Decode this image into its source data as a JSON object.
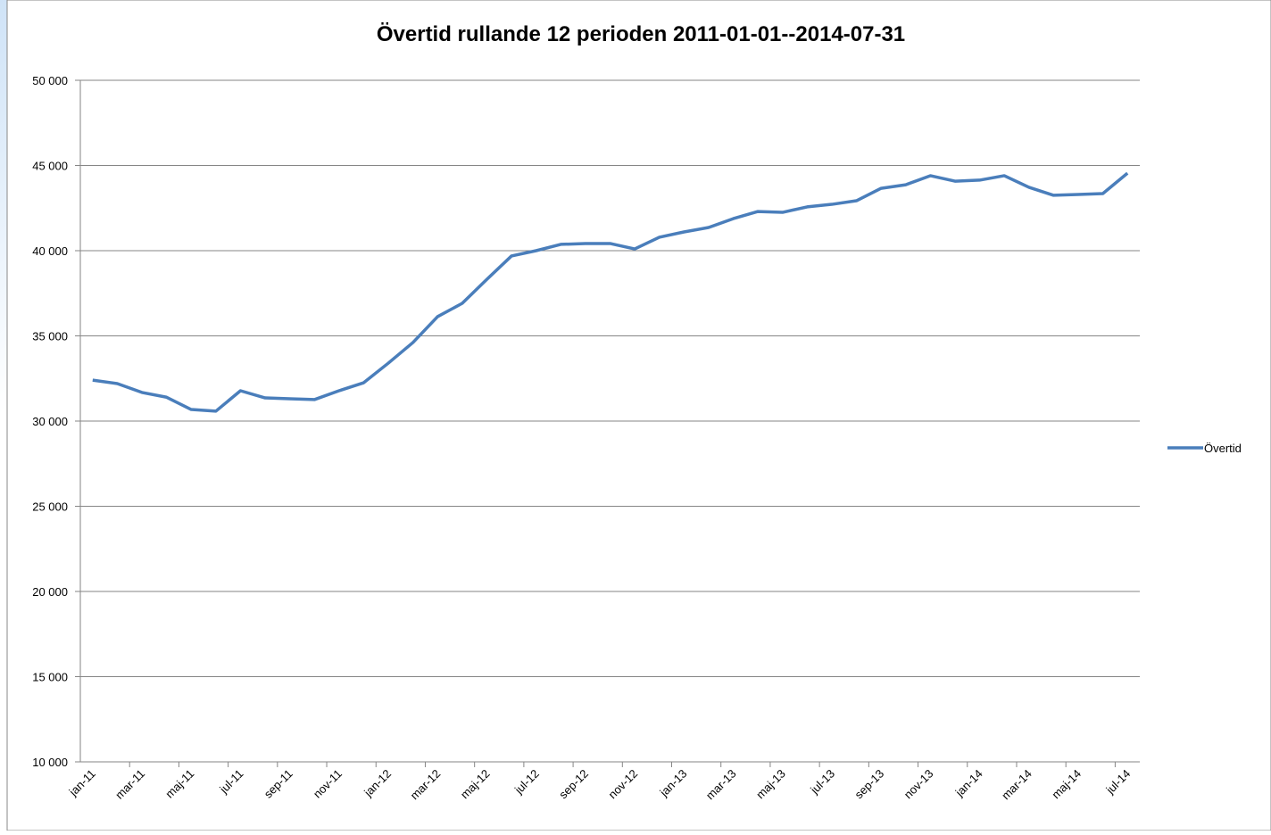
{
  "chart_data": {
    "type": "line",
    "title": "Övertid rullande 12 perioden 2011-01-01--2014-07-31",
    "categories": [
      "jan-11",
      null,
      "mar-11",
      null,
      "maj-11",
      null,
      "jul-11",
      null,
      "sep-11",
      null,
      "nov-11",
      null,
      "jan-12",
      null,
      "mar-12",
      null,
      "maj-12",
      null,
      "jul-12",
      null,
      "sep-12",
      null,
      "nov-12",
      null,
      "jan-13",
      null,
      "mar-13",
      null,
      "maj-13",
      null,
      "jul-13",
      null,
      "sep-13",
      null,
      "nov-13",
      null,
      "jan-14",
      null,
      "mar-14",
      null,
      "maj-14",
      null,
      "jul-14"
    ],
    "series": [
      {
        "name": "Övertid",
        "color": "#4a7ebb",
        "values": [
          32400,
          32200,
          31680,
          31400,
          30680,
          30580,
          31780,
          31360,
          31310,
          31260,
          31780,
          32250,
          33400,
          34610,
          36130,
          36910,
          38320,
          39690,
          40000,
          40370,
          40420,
          40420,
          40100,
          40790,
          41100,
          41360,
          41880,
          42300,
          42250,
          42570,
          42720,
          42930,
          43660,
          43870,
          44400,
          44080,
          44140,
          44400,
          43720,
          43250,
          43300,
          43350,
          44550
        ]
      }
    ],
    "ylim": [
      10000,
      50000
    ],
    "yticks": [
      {
        "value": 10000,
        "label": "10 000"
      },
      {
        "value": 15000,
        "label": "15 000"
      },
      {
        "value": 20000,
        "label": "20 000"
      },
      {
        "value": 25000,
        "label": "25 000"
      },
      {
        "value": 30000,
        "label": "30 000"
      },
      {
        "value": 35000,
        "label": "35 000"
      },
      {
        "value": 40000,
        "label": "40 000"
      },
      {
        "value": 45000,
        "label": "45 000"
      },
      {
        "value": 50000,
        "label": "50 000"
      }
    ],
    "grid": true,
    "legend": "right"
  }
}
